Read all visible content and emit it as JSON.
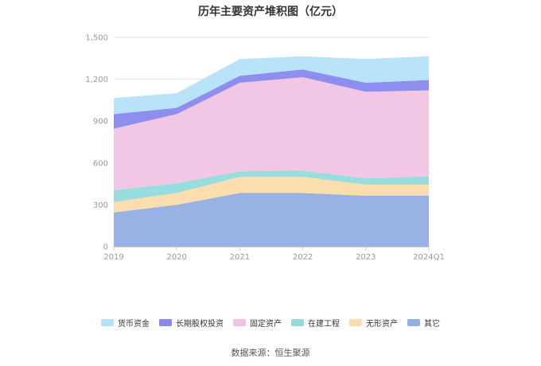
{
  "chart_data": {
    "type": "area",
    "stacked": true,
    "title": "历年主要资产堆积图（亿元）",
    "categories": [
      "2019",
      "2020",
      "2021",
      "2022",
      "2023",
      "2024Q1"
    ],
    "ylim": [
      0,
      1500
    ],
    "yticks": [
      0,
      300,
      600,
      900,
      1200,
      1500
    ],
    "ytick_labels": [
      "0",
      "300",
      "600",
      "900",
      "1,200",
      "1,500"
    ],
    "grid": true,
    "legend_position": "bottom",
    "series": [
      {
        "name": "其它",
        "color": "#91aee2",
        "values": [
          245,
          300,
          385,
          385,
          365,
          365
        ]
      },
      {
        "name": "无形资产",
        "color": "#fcdcaa",
        "values": [
          75,
          85,
          115,
          115,
          80,
          80
        ]
      },
      {
        "name": "在建工程",
        "color": "#92dcdc",
        "values": [
          85,
          70,
          40,
          45,
          45,
          60
        ]
      },
      {
        "name": "固定资产",
        "color": "#f0c4e4",
        "values": [
          440,
          495,
          635,
          670,
          620,
          615
        ]
      },
      {
        "name": "长期股权投资",
        "color": "#8888ee",
        "values": [
          105,
          45,
          50,
          55,
          65,
          75
        ]
      },
      {
        "name": "货币资金",
        "color": "#b4e2f8",
        "values": [
          115,
          105,
          120,
          95,
          170,
          170
        ]
      }
    ]
  },
  "legend_order": [
    "货币资金",
    "长期股权投资",
    "固定资产",
    "在建工程",
    "无形资产",
    "其它"
  ],
  "source": "数据来源：恒生聚源"
}
